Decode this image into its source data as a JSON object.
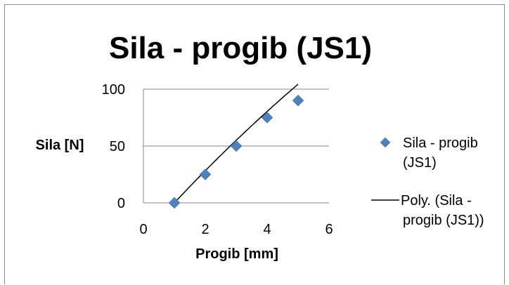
{
  "chart_data": {
    "type": "scatter",
    "title": "Sila - progib (JS1)",
    "xlabel": "Progib [mm]",
    "ylabel": "Sila [N]",
    "xlim": [
      0,
      6
    ],
    "ylim": [
      0,
      100
    ],
    "x_ticks": [
      "0",
      "2",
      "4",
      "6"
    ],
    "y_ticks": [
      "0",
      "50",
      "100"
    ],
    "grid": "horizontal",
    "legend_position": "right",
    "series": [
      {
        "name": "Sila - progib (JS1)",
        "marker": "diamond",
        "color": "#4f81bd",
        "points": [
          {
            "x": 1,
            "y": 0
          },
          {
            "x": 2,
            "y": 25
          },
          {
            "x": 3,
            "y": 50
          },
          {
            "x": 4,
            "y": 75
          },
          {
            "x": 5,
            "y": 90
          }
        ]
      }
    ],
    "trendline": {
      "name": "Poly. (Sila - progib (JS1))",
      "color": "#000000",
      "type": "polynomial",
      "coefficients": [
        -29.6,
        30.357,
        -0.7143
      ]
    },
    "legend": {
      "series_label_lines": [
        "Sila - progib",
        "(JS1)"
      ],
      "trend_label_lines": [
        "Poly. (Sila -",
        "progib (JS1))"
      ]
    }
  }
}
